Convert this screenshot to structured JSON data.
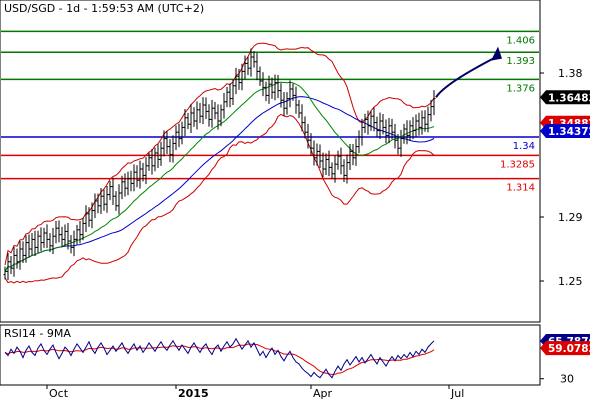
{
  "chart_data": [
    {
      "type": "candlestick",
      "title": "USD/SGD - 1d - 1:59:53 AM (UTC+2)",
      "ylim": [
        1.225,
        1.425
      ],
      "yticks": [
        {
          "value": 1.38,
          "label": "1.38"
        },
        {
          "value": 1.29,
          "label": "1.29"
        },
        {
          "value": 1.25,
          "label": "1.25"
        }
      ],
      "xticks": [
        {
          "index": 14,
          "label": "Oct"
        },
        {
          "index": 57,
          "label": "2015"
        },
        {
          "index": 102,
          "label": "Apr"
        },
        {
          "index": 148,
          "label": "Jul"
        }
      ],
      "current_price": {
        "value": 1.36483,
        "label": "1.36483"
      },
      "badges": [
        {
          "value": 1.34887,
          "label": "1.34887",
          "color": "#dd0000"
        },
        {
          "value": 1.34372,
          "label": "1.34372",
          "color": "#0000cc"
        }
      ],
      "levels": [
        {
          "value": 1.406,
          "label": "1.406",
          "color": "#007700"
        },
        {
          "value": 1.393,
          "label": "1.393",
          "color": "#007700"
        },
        {
          "value": 1.376,
          "label": "1.376",
          "color": "#007700"
        },
        {
          "value": 1.34,
          "label": "1.34",
          "color": "#0000cc"
        },
        {
          "value": 1.3285,
          "label": "1.3285",
          "color": "#dd0000"
        },
        {
          "value": 1.314,
          "label": "1.314",
          "color": "#dd0000"
        }
      ],
      "closes": [
        1.256,
        1.262,
        1.258,
        1.266,
        1.262,
        1.27,
        1.266,
        1.274,
        1.27,
        1.276,
        1.271,
        1.278,
        1.274,
        1.28,
        1.276,
        1.272,
        1.278,
        1.283,
        1.279,
        1.276,
        1.281,
        1.275,
        1.271,
        1.276,
        1.282,
        1.279,
        1.286,
        1.292,
        1.288,
        1.294,
        1.3,
        1.297,
        1.303,
        1.298,
        1.304,
        1.309,
        1.303,
        1.297,
        1.305,
        1.312,
        1.308,
        1.314,
        1.311,
        1.318,
        1.313,
        1.32,
        1.316,
        1.322,
        1.327,
        1.322,
        1.33,
        1.326,
        1.333,
        1.339,
        1.334,
        1.329,
        1.336,
        1.343,
        1.339,
        1.346,
        1.352,
        1.348,
        1.355,
        1.35,
        1.357,
        1.353,
        1.36,
        1.356,
        1.351,
        1.358,
        1.355,
        1.35,
        1.357,
        1.362,
        1.368,
        1.364,
        1.372,
        1.378,
        1.374,
        1.381,
        1.386,
        1.383,
        1.39,
        1.387,
        1.381,
        1.375,
        1.371,
        1.366,
        1.373,
        1.368,
        1.374,
        1.369,
        1.363,
        1.358,
        1.364,
        1.37,
        1.366,
        1.36,
        1.355,
        1.349,
        1.343,
        1.338,
        1.333,
        1.327,
        1.331,
        1.325,
        1.32,
        1.326,
        1.321,
        1.317,
        1.323,
        1.328,
        1.322,
        1.316,
        1.324,
        1.331,
        1.327,
        1.334,
        1.34,
        1.346,
        1.351,
        1.347,
        1.353,
        1.349,
        1.344,
        1.35,
        1.346,
        1.341,
        1.347,
        1.343,
        1.338,
        1.333,
        1.339,
        1.345,
        1.341,
        1.347,
        1.344,
        1.35,
        1.346,
        1.352,
        1.348,
        1.354,
        1.359,
        1.364
      ],
      "indicators": [
        {
          "name": "MA blue",
          "color": "#0000cc"
        },
        {
          "name": "MA green",
          "color": "#008800"
        },
        {
          "name": "Bollinger",
          "color": "#cc0000"
        }
      ],
      "projection": {
        "from": 1.3648,
        "to": 1.394,
        "color": "#000066"
      }
    },
    {
      "type": "line",
      "title": "RSI14 - 9MA",
      "ylim": [
        25,
        80
      ],
      "yticks": [
        {
          "value": 30,
          "label": "30"
        }
      ],
      "series": [
        {
          "name": "RSI14",
          "color": "#000088",
          "last": 65.7876,
          "label": "65.7876"
        },
        {
          "name": "9MA",
          "color": "#dd0000",
          "last": 59.0783,
          "label": "59.0783"
        }
      ],
      "rsi_values": [
        55,
        52,
        58,
        54,
        60,
        56,
        50,
        57,
        61,
        55,
        52,
        59,
        63,
        57,
        53,
        58,
        62,
        55,
        49,
        54,
        60,
        57,
        52,
        58,
        63,
        59,
        55,
        60,
        65,
        58,
        54,
        60,
        64,
        59,
        53,
        57,
        61,
        56,
        60,
        64,
        58,
        54,
        59,
        63,
        57,
        61,
        55,
        59,
        64,
        60,
        56,
        61,
        65,
        60,
        57,
        62,
        66,
        61,
        57,
        62,
        58,
        54,
        60,
        64,
        59,
        55,
        60,
        63,
        57,
        53,
        59,
        62,
        56,
        61,
        65,
        60,
        63,
        68,
        63,
        58,
        62,
        66,
        60,
        64,
        58,
        52,
        56,
        50,
        55,
        59,
        53,
        57,
        51,
        47,
        52,
        56,
        50,
        46,
        44,
        40,
        37,
        35,
        32,
        36,
        33,
        31,
        35,
        39,
        34,
        31,
        37,
        42,
        38,
        44,
        48,
        43,
        47,
        51,
        46,
        50,
        45,
        49,
        53,
        48,
        44,
        50,
        46,
        42,
        47,
        51,
        47,
        52,
        49,
        53,
        50,
        55,
        51,
        56,
        53,
        58,
        55,
        60,
        63,
        66
      ]
    }
  ]
}
